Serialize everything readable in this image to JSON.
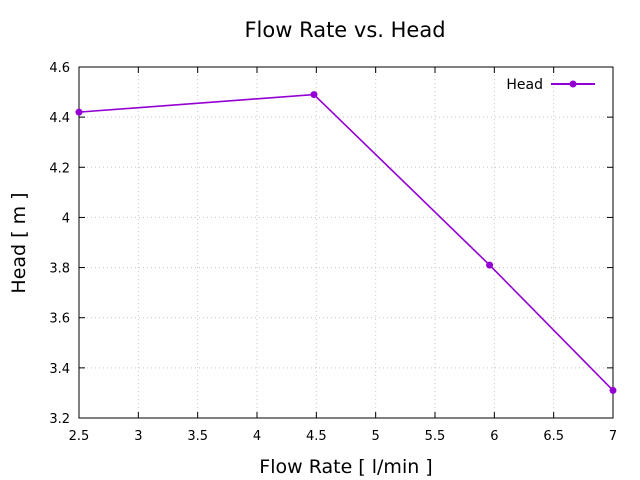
{
  "chart_data": {
    "type": "line",
    "title": "Flow Rate vs. Head",
    "xlabel": "Flow Rate [ l/min ]",
    "ylabel": "Head [ m ]",
    "xlim": [
      2.5,
      7
    ],
    "ylim": [
      3.2,
      4.6
    ],
    "xticks": [
      "2.5",
      "3",
      "3.5",
      "4",
      "4.5",
      "5",
      "5.5",
      "6",
      "6.5",
      "7"
    ],
    "xtick_values": [
      2.5,
      3,
      3.5,
      4,
      4.5,
      5,
      5.5,
      6,
      6.5,
      7
    ],
    "yticks": [
      "3.2",
      "3.4",
      "3.6",
      "3.8",
      "4",
      "4.2",
      "4.4",
      "4.6"
    ],
    "ytick_values": [
      3.2,
      3.4,
      3.6,
      3.8,
      4.0,
      4.2,
      4.4,
      4.6
    ],
    "grid": true,
    "legend_position": "top-right",
    "series": [
      {
        "name": "Head",
        "color": "#9400d3",
        "x": [
          2.5,
          4.48,
          5.96,
          7.0
        ],
        "y": [
          4.42,
          4.49,
          3.81,
          3.31
        ]
      }
    ]
  }
}
